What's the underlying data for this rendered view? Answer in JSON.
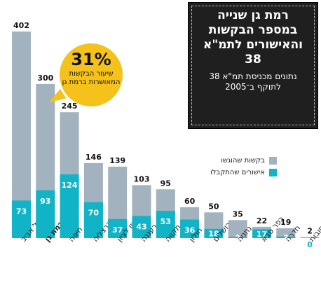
{
  "title": {
    "main": "רמת גן שנייה במספר הבקשות והאישורים לתמ\"א 38",
    "sub": "נתונים מכניסת תמ\"א 38 לתוקף ב־2005"
  },
  "callout": {
    "value": "31%",
    "text": "שיעור הבקשות המאושרות ברמת גן"
  },
  "legend": [
    {
      "label": "בקשות שהוגשו",
      "color": "#a2b2be"
    },
    {
      "label": "אישורים שהתקבלו",
      "color": "#11b3c7"
    }
  ],
  "chart_data": {
    "type": "bar",
    "categories": [
      "תל אביב",
      "רמת גן",
      "חיפה",
      "הרצליה",
      "ראשון לציון",
      "רעננה",
      "פתח תקווה",
      "חולון",
      "ירושלים",
      "נתניה",
      "כפר סבא",
      "חדרה",
      "רחובות"
    ],
    "highlight_category": "רמת גן",
    "series": [
      {
        "name": "בקשות שהוגשו",
        "values": [
          402,
          300,
          245,
          146,
          139,
          103,
          95,
          60,
          50,
          35,
          22,
          19,
          2
        ]
      },
      {
        "name": "אישורים שהתקבלו",
        "values": [
          73,
          93,
          124,
          70,
          37,
          43,
          53,
          36,
          18,
          2,
          17,
          3,
          0
        ]
      }
    ],
    "ylim": [
      0,
      402
    ],
    "grid": false,
    "legend_position": "right"
  }
}
